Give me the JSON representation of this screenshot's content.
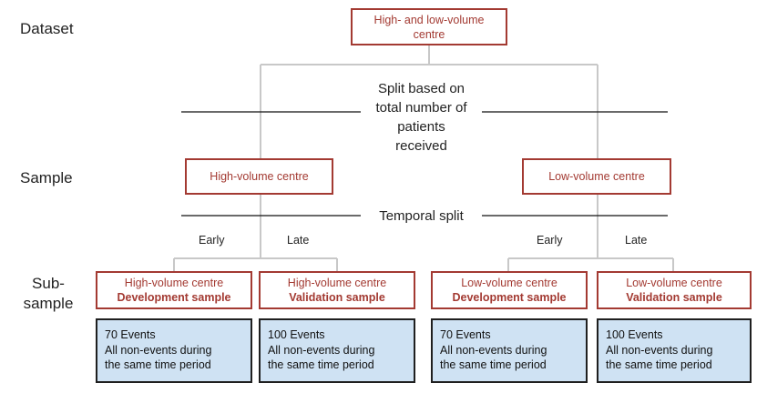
{
  "row_labels": {
    "dataset": "Dataset",
    "sample": "Sample",
    "subsample": "Sub-\nsample"
  },
  "root": {
    "line1": "High- and low-volume",
    "line2": "centre"
  },
  "split_notes": {
    "volume_split": "Split based on\ntotal number of\npatients\nreceived",
    "temporal_split": "Temporal split"
  },
  "samples": {
    "high": "High-volume centre",
    "low": "Low-volume centre"
  },
  "branch_labels": {
    "early": "Early",
    "late": "Late"
  },
  "subsamples": [
    {
      "centre": "High-volume centre",
      "role": "Development sample"
    },
    {
      "centre": "High-volume centre",
      "role": "Validation sample"
    },
    {
      "centre": "Low-volume centre",
      "role": "Development sample"
    },
    {
      "centre": "Low-volume centre",
      "role": "Validation sample"
    }
  ],
  "event_boxes": [
    {
      "events": "70 Events",
      "line2": "All non-events during",
      "line3": "the same time period"
    },
    {
      "events": "100 Events",
      "line2": "All non-events during",
      "line3": "the same time period"
    },
    {
      "events": "70 Events",
      "line2": "All non-events during",
      "line3": "the same time period"
    },
    {
      "events": "100 Events",
      "line2": "All non-events during",
      "line3": "the same time period"
    }
  ],
  "colors": {
    "box_border_red": "#a33a32",
    "event_box_fill": "#cfe2f3",
    "connector_grey": "#c8c8c8",
    "divider_black": "#111111"
  }
}
